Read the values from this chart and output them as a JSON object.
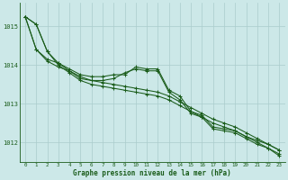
{
  "title": "Graphe pression niveau de la mer (hPa)",
  "background_color": "#cce8e8",
  "grid_color": "#aacccc",
  "line_color": "#1a5c1a",
  "xlim": [
    -0.5,
    23.5
  ],
  "ylim": [
    1011.5,
    1015.6
  ],
  "yticks": [
    1012,
    1013,
    1014,
    1015
  ],
  "xticks": [
    0,
    1,
    2,
    3,
    4,
    5,
    6,
    7,
    8,
    9,
    10,
    11,
    12,
    13,
    14,
    15,
    16,
    17,
    18,
    19,
    20,
    21,
    22,
    23
  ],
  "series": [
    [
      1015.25,
      1015.05,
      1014.35,
      1014.05,
      1013.85,
      1013.7,
      1013.6,
      1013.55,
      1013.5,
      1013.45,
      1013.4,
      1013.35,
      1013.3,
      1013.2,
      1013.05,
      1012.9,
      1012.75,
      1012.6,
      1012.5,
      1012.4,
      1012.25,
      1012.1,
      1011.95,
      1011.8
    ],
    [
      1015.25,
      1015.05,
      1014.35,
      1014.0,
      1013.8,
      1013.6,
      1013.5,
      1013.45,
      1013.4,
      1013.35,
      1013.3,
      1013.25,
      1013.2,
      1013.1,
      1012.95,
      1012.8,
      1012.65,
      1012.5,
      1012.4,
      1012.3,
      1012.15,
      1012.0,
      1011.85,
      1011.65
    ],
    [
      1015.25,
      1014.4,
      1014.1,
      1013.95,
      1013.85,
      1013.65,
      1013.6,
      1013.6,
      1013.65,
      1013.8,
      1013.9,
      1013.85,
      1013.85,
      1013.3,
      1013.1,
      1012.75,
      1012.65,
      1012.35,
      1012.3,
      1012.25,
      1012.1,
      1011.95,
      1011.85,
      1011.7
    ],
    [
      1015.25,
      1014.4,
      1014.15,
      1014.05,
      1013.9,
      1013.75,
      1013.7,
      1013.7,
      1013.75,
      1013.75,
      1013.95,
      1013.9,
      1013.9,
      1013.35,
      1013.2,
      1012.8,
      1012.7,
      1012.4,
      1012.35,
      1012.3,
      1012.15,
      1012.05,
      1011.95,
      1011.8
    ]
  ],
  "figsize": [
    3.2,
    2.0
  ],
  "dpi": 100
}
